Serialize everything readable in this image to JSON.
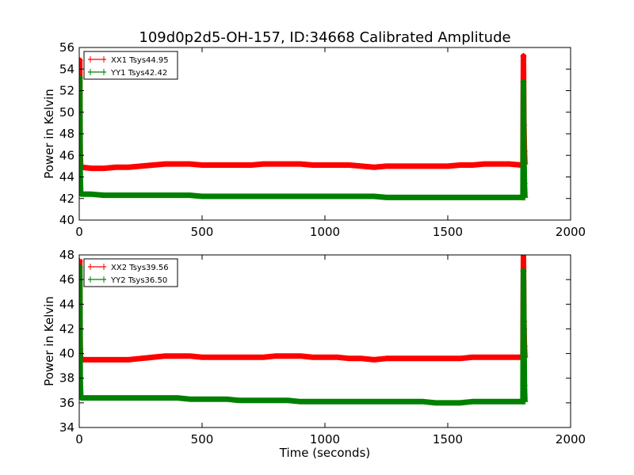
{
  "title": "109d0p2d5-OH-157, ID:34668 Calibrated Amplitude",
  "chart_data": [
    {
      "type": "line",
      "title": "109d0p2d5-OH-157, ID:34668 Calibrated Amplitude",
      "xlabel": "",
      "ylabel": "Power in Kelvin",
      "xlim": [
        0,
        2000
      ],
      "ylim": [
        40,
        56
      ],
      "xticks": [
        "0",
        "500",
        "1000",
        "1500",
        "2000"
      ],
      "yticks": [
        "40",
        "42",
        "44",
        "46",
        "48",
        "50",
        "52",
        "54",
        "56"
      ],
      "legend_position": "top-left",
      "grid": false,
      "series": [
        {
          "name": "XX1 Tsys44.95",
          "color": "#ff0000",
          "x": [
            0,
            2,
            4,
            6,
            10,
            50,
            100,
            150,
            200,
            250,
            300,
            350,
            400,
            450,
            500,
            550,
            600,
            650,
            700,
            750,
            800,
            850,
            900,
            950,
            1000,
            1050,
            1100,
            1150,
            1200,
            1250,
            1300,
            1350,
            1400,
            1450,
            1500,
            1550,
            1600,
            1650,
            1700,
            1750,
            1800,
            1806,
            1808,
            1810,
            1812,
            1814
          ],
          "y": [
            54.5,
            54.8,
            46.0,
            45.0,
            44.9,
            44.8,
            44.8,
            44.9,
            44.9,
            45.0,
            45.1,
            45.2,
            45.2,
            45.2,
            45.1,
            45.1,
            45.1,
            45.1,
            45.1,
            45.2,
            45.2,
            45.2,
            45.2,
            45.1,
            45.1,
            45.1,
            45.1,
            45.0,
            44.9,
            45.0,
            45.0,
            45.0,
            45.0,
            45.0,
            45.0,
            45.1,
            45.1,
            45.2,
            45.2,
            45.2,
            45.1,
            45.2,
            55.2,
            48.8,
            46.4,
            45.2
          ]
        },
        {
          "name": "YY1 Tsys42.42",
          "color": "#008000",
          "x": [
            0,
            2,
            4,
            6,
            10,
            50,
            100,
            150,
            200,
            250,
            300,
            350,
            400,
            450,
            500,
            550,
            600,
            650,
            700,
            750,
            800,
            850,
            900,
            950,
            1000,
            1050,
            1100,
            1150,
            1200,
            1250,
            1300,
            1350,
            1400,
            1450,
            1500,
            1550,
            1600,
            1650,
            1700,
            1750,
            1800,
            1806,
            1808,
            1810,
            1812,
            1814
          ],
          "y": [
            53.0,
            53.2,
            44.0,
            42.5,
            42.4,
            42.4,
            42.3,
            42.3,
            42.3,
            42.3,
            42.3,
            42.3,
            42.3,
            42.3,
            42.2,
            42.2,
            42.2,
            42.2,
            42.2,
            42.2,
            42.2,
            42.2,
            42.2,
            42.2,
            42.2,
            42.2,
            42.2,
            42.2,
            42.2,
            42.1,
            42.1,
            42.1,
            42.1,
            42.1,
            42.1,
            42.1,
            42.1,
            42.1,
            42.1,
            42.1,
            42.1,
            42.1,
            52.8,
            46.0,
            43.4,
            42.1
          ]
        }
      ]
    },
    {
      "type": "line",
      "title": "",
      "xlabel": "Time (seconds)",
      "ylabel": "Power in Kelvin",
      "xlim": [
        0,
        2000
      ],
      "ylim": [
        34,
        48
      ],
      "xticks": [
        "0",
        "500",
        "1000",
        "1500",
        "2000"
      ],
      "yticks": [
        "34",
        "36",
        "38",
        "40",
        "42",
        "44",
        "46",
        "48"
      ],
      "legend_position": "top-left",
      "grid": false,
      "series": [
        {
          "name": "XX2 Tsys39.56",
          "color": "#ff0000",
          "x": [
            0,
            2,
            4,
            6,
            10,
            50,
            100,
            150,
            200,
            250,
            300,
            350,
            400,
            450,
            500,
            550,
            600,
            650,
            700,
            750,
            800,
            850,
            900,
            950,
            1000,
            1050,
            1100,
            1150,
            1200,
            1250,
            1300,
            1350,
            1400,
            1450,
            1500,
            1550,
            1600,
            1650,
            1700,
            1750,
            1800,
            1806,
            1808,
            1810,
            1812,
            1814
          ],
          "y": [
            47.6,
            47.5,
            40.4,
            39.5,
            39.5,
            39.5,
            39.5,
            39.5,
            39.5,
            39.6,
            39.7,
            39.8,
            39.8,
            39.8,
            39.7,
            39.7,
            39.7,
            39.7,
            39.7,
            39.7,
            39.8,
            39.8,
            39.8,
            39.7,
            39.7,
            39.7,
            39.6,
            39.6,
            39.5,
            39.6,
            39.6,
            39.6,
            39.6,
            39.6,
            39.6,
            39.6,
            39.7,
            39.7,
            39.7,
            39.7,
            39.7,
            39.7,
            48.0,
            42.6,
            40.6,
            39.7
          ]
        },
        {
          "name": "YY2 Tsys36.50",
          "color": "#008000",
          "x": [
            0,
            2,
            4,
            6,
            10,
            50,
            100,
            150,
            200,
            250,
            300,
            350,
            400,
            450,
            500,
            550,
            600,
            650,
            700,
            750,
            800,
            850,
            900,
            950,
            1000,
            1050,
            1100,
            1150,
            1200,
            1250,
            1300,
            1350,
            1400,
            1450,
            1500,
            1550,
            1600,
            1650,
            1700,
            1750,
            1800,
            1806,
            1808,
            1810,
            1812,
            1814
          ],
          "y": [
            46.8,
            47.0,
            38.0,
            36.5,
            36.4,
            36.4,
            36.4,
            36.4,
            36.4,
            36.4,
            36.4,
            36.4,
            36.4,
            36.3,
            36.3,
            36.3,
            36.3,
            36.2,
            36.2,
            36.2,
            36.2,
            36.2,
            36.1,
            36.1,
            36.1,
            36.1,
            36.1,
            36.1,
            36.1,
            36.1,
            36.1,
            36.1,
            36.1,
            36.0,
            36.0,
            36.0,
            36.1,
            36.1,
            36.1,
            36.1,
            36.1,
            36.1,
            46.7,
            42.0,
            37.4,
            36.1
          ]
        }
      ]
    }
  ]
}
